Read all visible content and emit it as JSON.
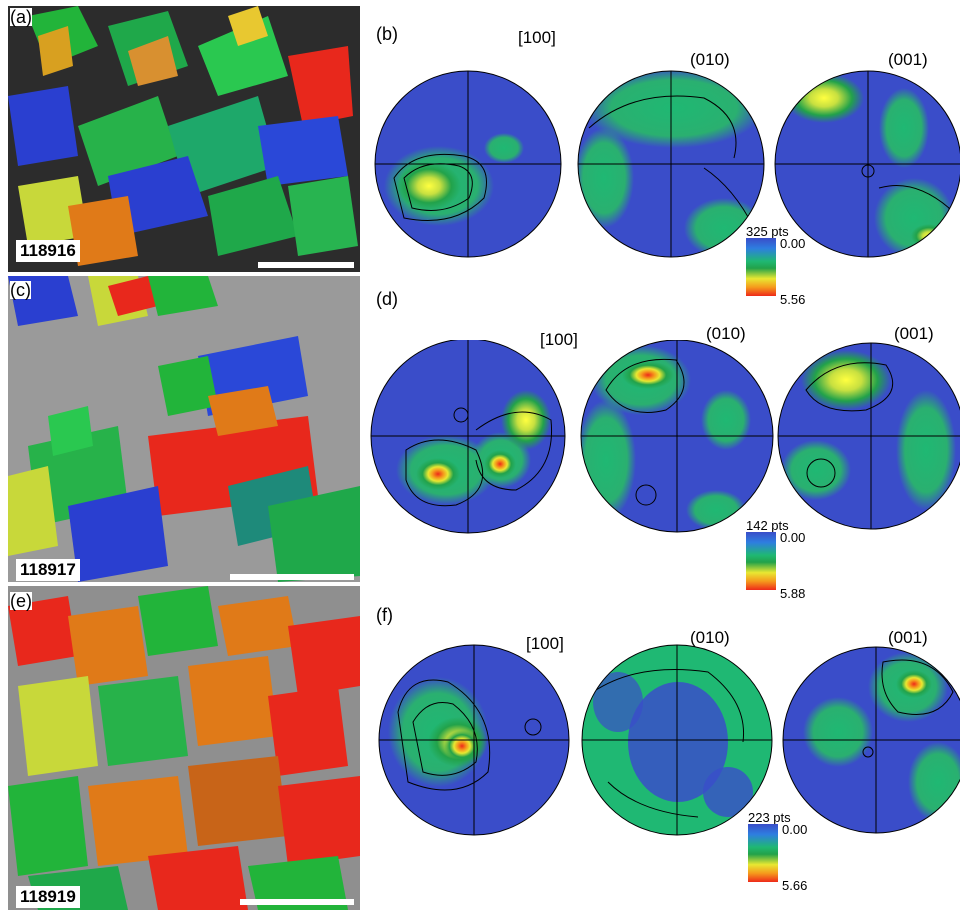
{
  "panels": {
    "a": {
      "label": "(a)",
      "sample": "118916"
    },
    "b": {
      "label": "(b)",
      "axes": [
        "[100]",
        "(010)",
        "(001)"
      ],
      "points": "325 pts",
      "min": "0.00",
      "max": "5.56"
    },
    "c": {
      "label": "(c)",
      "sample": "118917"
    },
    "d": {
      "label": "(d)",
      "axes": [
        "[100]",
        "(010)",
        "(001)"
      ],
      "points": "142 pts",
      "min": "0.00",
      "max": "5.88"
    },
    "e": {
      "label": "(e)",
      "sample": "118919"
    },
    "f": {
      "label": "(f)",
      "axes": [
        "[100]",
        "(010)",
        "(001)"
      ],
      "points": "223 pts",
      "min": "0.00",
      "max": "5.66"
    }
  },
  "colors": {
    "low": "#3a4dc9",
    "mid": "#1fb873",
    "high_yellow": "#e8e832",
    "high_red": "#ee2a1a",
    "grain_green": "#22b43a",
    "grain_red": "#e8281c",
    "grain_blue": "#2a3fd0",
    "grain_orange": "#e07a18",
    "grain_yellow": "#c8d83a",
    "matrix": "#9a9a9a"
  }
}
